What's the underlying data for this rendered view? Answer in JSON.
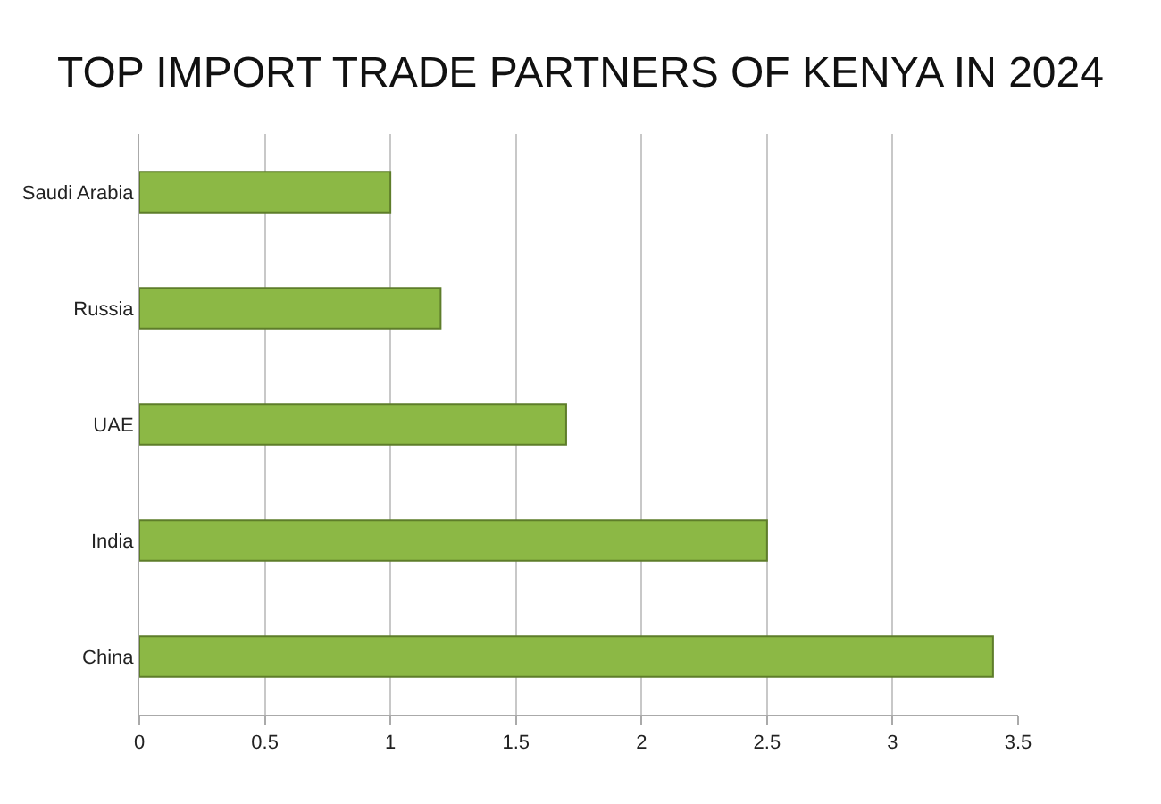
{
  "chart_data": {
    "type": "bar",
    "orientation": "horizontal",
    "title": "TOP IMPORT TRADE PARTNERS OF KENYA IN 2024",
    "categories": [
      "Saudi Arabia",
      "Russia",
      "UAE",
      "India",
      "China"
    ],
    "values": [
      1.0,
      1.2,
      1.7,
      2.5,
      3.4
    ],
    "color": "#8cb845",
    "xlim": [
      0,
      3.5
    ],
    "xticks": [
      0,
      0.5,
      1,
      1.5,
      2,
      2.5,
      3,
      3.5
    ],
    "grid": "x"
  }
}
